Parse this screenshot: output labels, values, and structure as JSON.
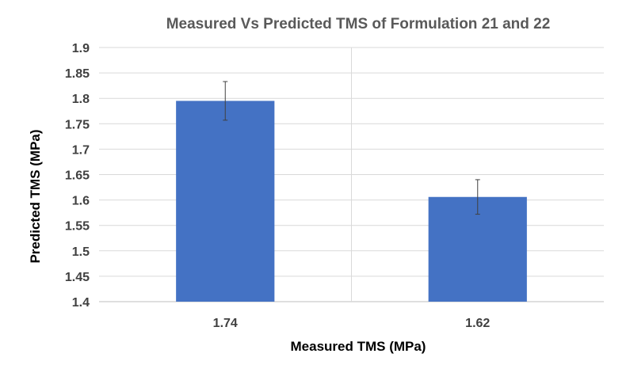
{
  "chart_data": {
    "type": "bar",
    "title": "Measured Vs Predicted TMS of Formulation  21 and 22",
    "xlabel": "Measured TMS (MPa)",
    "ylabel": "Predicted TMS (MPa)",
    "categories": [
      "1.74",
      "1.62"
    ],
    "values": [
      1.795,
      1.606
    ],
    "error": [
      0.038,
      0.034
    ],
    "ylim": [
      1.4,
      1.9
    ],
    "yticks": [
      1.4,
      1.45,
      1.5,
      1.55,
      1.6,
      1.65,
      1.7,
      1.75,
      1.8,
      1.85,
      1.9
    ],
    "ytick_labels": [
      "1.4",
      "1.45",
      "1.5",
      "1.55",
      "1.6",
      "1.65",
      "1.7",
      "1.75",
      "1.8",
      "1.85",
      "1.9"
    ],
    "grid": true,
    "legend": "none",
    "bar_color": "#4472c4"
  }
}
